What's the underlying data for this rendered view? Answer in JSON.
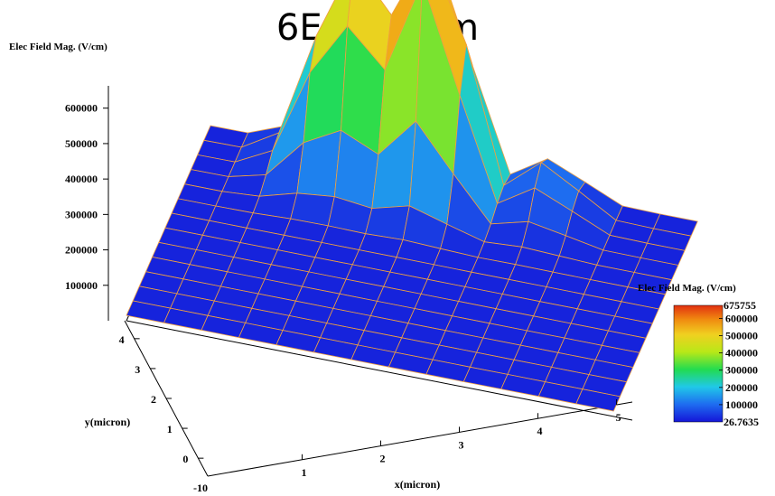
{
  "header": {
    "big_label": "6E+5 V/cm"
  },
  "chart_data": {
    "type": "surface",
    "title": "",
    "zlabel": "Elec Field Mag. (V/cm)",
    "xlabel": "x(micron)",
    "ylabel": "y(micron)",
    "x_ticks": [
      1,
      2,
      3,
      4,
      5
    ],
    "y_ticks": [
      0,
      1,
      2,
      3,
      4
    ],
    "origin_tick": "-10",
    "z_ticks": [
      100000,
      200000,
      300000,
      400000,
      500000,
      600000
    ],
    "z_tick_labels": [
      "100000",
      "200000",
      "300000",
      "400000",
      "500000",
      "600000"
    ],
    "xlim": [
      -0.2,
      5.2
    ],
    "ylim": [
      -0.6,
      4.6
    ],
    "zlim": [
      0,
      675755
    ],
    "grid_x": [
      -0.2,
      0.2,
      0.6,
      1.0,
      1.4,
      1.8,
      2.2,
      2.6,
      3.0,
      3.4,
      3.8,
      4.2,
      4.6,
      5.0
    ],
    "grid_y": [
      -0.6,
      -0.2,
      0.2,
      0.6,
      1.0,
      1.4,
      1.8,
      2.2,
      2.6,
      3.0,
      3.4,
      3.8,
      4.2,
      4.6
    ],
    "peaks": [
      {
        "x": 2.35,
        "y": 4.2,
        "value": 675755
      },
      {
        "x": 1.4,
        "y": 4.2,
        "value": 520000
      },
      {
        "x": 2.0,
        "y": 4.2,
        "value": 380000
      },
      {
        "x": 1.0,
        "y": 4.1,
        "value": 240000
      },
      {
        "x": 3.5,
        "y": 4.2,
        "value": 150000
      }
    ],
    "background_value": 15000,
    "colorbar": {
      "title": "Elec Field Mag. (V/cm)",
      "max_label": "675755",
      "min_label": "26.7635",
      "labels": [
        "600000",
        "500000",
        "400000",
        "300000",
        "200000",
        "100000"
      ],
      "min": 26.7635,
      "max": 675755
    },
    "mesh_color": "#f0a040",
    "colormap": [
      "#1515d8",
      "#1e6cf0",
      "#20c8e8",
      "#22dc50",
      "#b8e818",
      "#f0d020",
      "#f08a10",
      "#e23010"
    ]
  }
}
